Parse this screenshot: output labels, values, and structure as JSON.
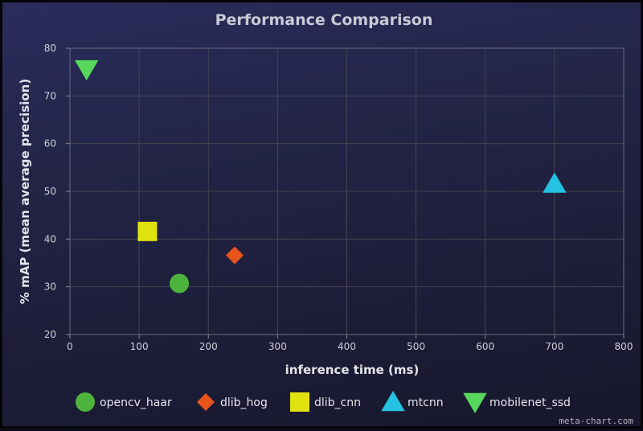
{
  "chart_data": {
    "type": "scatter",
    "title": "Performance Comparison",
    "xlabel": "inference time (ms)",
    "ylabel": "% mAP (mean average precision)",
    "xlim": [
      0,
      800
    ],
    "ylim": [
      20,
      80
    ],
    "xticks": [
      0,
      100,
      200,
      300,
      400,
      500,
      600,
      700,
      800
    ],
    "yticks": [
      20,
      30,
      40,
      50,
      60,
      70,
      80
    ],
    "grid": true,
    "legend_position": "bottom",
    "series": [
      {
        "name": "opencv_haar",
        "marker": "circle",
        "color": "#4db33d",
        "x": 158,
        "y": 30.7
      },
      {
        "name": "dlib_hog",
        "marker": "diamond",
        "color": "#e8531c",
        "x": 238,
        "y": 36.6
      },
      {
        "name": "dlib_cnn",
        "marker": "square",
        "color": "#e1e10f",
        "x": 112,
        "y": 41.6
      },
      {
        "name": "mtcnn",
        "marker": "triangle-up",
        "color": "#25c1e0",
        "x": 700,
        "y": 51.6
      },
      {
        "name": "mobilenet_ssd",
        "marker": "triangle-down",
        "color": "#55d85c",
        "x": 24,
        "y": 75.6
      }
    ]
  },
  "credit": "meta-chart.com"
}
